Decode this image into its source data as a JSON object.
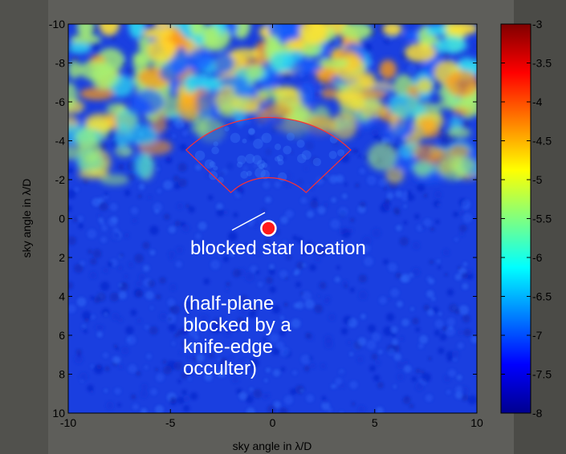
{
  "chart_data": {
    "type": "heatmap",
    "title": "",
    "xlabel": "sky angle in λ/D",
    "ylabel": "sky angle in λ/D",
    "xlim": [
      -10,
      10
    ],
    "ylim": [
      -10,
      10
    ],
    "y_axis_inverted": true,
    "x_ticks": [
      "-10",
      "-5",
      "0",
      "5",
      "10"
    ],
    "y_ticks": [
      "-10",
      "-8",
      "-6",
      "-4",
      "-2",
      "0",
      "2",
      "4",
      "6",
      "8",
      "10"
    ],
    "colorbar": {
      "range": [
        -8,
        -3
      ],
      "colormap": "jet",
      "ticks": [
        "-3",
        "-3.5",
        "-4",
        "-4.5",
        "-5",
        "-5.5",
        "-6",
        "-6.5",
        "-7",
        "-7.5",
        "-8"
      ]
    },
    "star": {
      "x": -0.2,
      "y": 0.5,
      "color": "#ff1a1a"
    },
    "annotations": [
      {
        "text": "blocked star location"
      },
      {
        "lines": [
          "(half-plane",
          "blocked by a",
          "knife-edge",
          "occulter)"
        ]
      }
    ],
    "dark_hole": {
      "center": [
        -0.2,
        0.5
      ],
      "inner_radius": 2.6,
      "outer_radius": 5.7,
      "angle_range_deg": [
        45,
        135
      ],
      "outline_color": "#ff3030"
    }
  }
}
